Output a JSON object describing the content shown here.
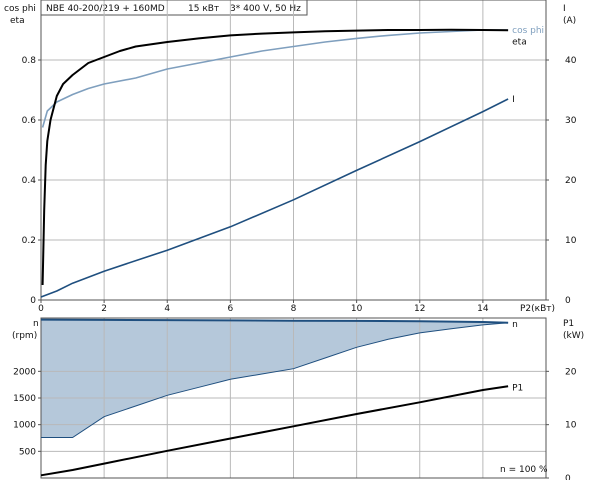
{
  "header": {
    "title": "NBE 40-200/219 + 160MD",
    "power": "15 кВт",
    "supply": "3* 400 V, 50 Hz"
  },
  "colors": {
    "eta": "#000000",
    "cos_phi": "#7f9fbe",
    "current": "#1f4f7f",
    "speed_line": "#1f4f7f",
    "speed_fill": "#b5c8da",
    "power_input": "#000000",
    "grid": "#b9b9b9"
  },
  "footer": {
    "speed_percent": "n  = 100 %"
  },
  "chart_data": [
    {
      "type": "line",
      "panel": "top",
      "left_axis": {
        "label_lines": [
          "cos phi",
          "eta"
        ],
        "ylim": [
          0,
          1
        ],
        "ticks": [
          "0",
          "0.2",
          "0.4",
          "0.6",
          "0.8"
        ]
      },
      "right_axis": {
        "label_lines": [
          "I",
          "(A)"
        ],
        "ylim": [
          0,
          50
        ],
        "ticks": [
          "0",
          "10",
          "20",
          "30",
          "40"
        ]
      },
      "x_axis": {
        "label": "P2(кВт)",
        "xlim": [
          0,
          16
        ],
        "ticks": [
          "0",
          "2",
          "4",
          "6",
          "8",
          "10",
          "12",
          "14"
        ]
      },
      "grid": true,
      "series": [
        {
          "name": "eta",
          "axis": "left",
          "color_key": "eta",
          "points": [
            [
              0.05,
              0.05
            ],
            [
              0.1,
              0.3
            ],
            [
              0.15,
              0.45
            ],
            [
              0.2,
              0.53
            ],
            [
              0.3,
              0.6
            ],
            [
              0.5,
              0.68
            ],
            [
              0.7,
              0.72
            ],
            [
              1,
              0.75
            ],
            [
              1.5,
              0.79
            ],
            [
              2,
              0.81
            ],
            [
              2.5,
              0.83
            ],
            [
              3,
              0.845
            ],
            [
              4,
              0.86
            ],
            [
              5,
              0.872
            ],
            [
              6,
              0.882
            ],
            [
              7,
              0.888
            ],
            [
              8,
              0.892
            ],
            [
              9,
              0.896
            ],
            [
              10,
              0.898
            ],
            [
              11,
              0.9
            ],
            [
              12,
              0.9
            ],
            [
              13,
              0.901
            ],
            [
              14,
              0.9
            ],
            [
              14.8,
              0.899
            ]
          ]
        },
        {
          "name": "cos phi",
          "axis": "left",
          "color_key": "cos_phi",
          "points": [
            [
              0.05,
              0.575
            ],
            [
              0.2,
              0.63
            ],
            [
              0.5,
              0.66
            ],
            [
              1,
              0.685
            ],
            [
              1.5,
              0.705
            ],
            [
              2,
              0.72
            ],
            [
              3,
              0.74
            ],
            [
              4,
              0.77
            ],
            [
              5,
              0.79
            ],
            [
              6,
              0.81
            ],
            [
              7,
              0.83
            ],
            [
              8,
              0.845
            ],
            [
              9,
              0.86
            ],
            [
              10,
              0.872
            ],
            [
              11,
              0.882
            ],
            [
              12,
              0.89
            ],
            [
              13,
              0.895
            ],
            [
              14,
              0.9
            ],
            [
              14.8,
              0.9
            ]
          ]
        },
        {
          "name": "I",
          "axis": "right",
          "color_key": "current",
          "points": [
            [
              0,
              0.5
            ],
            [
              0.5,
              1.5
            ],
            [
              1,
              2.8
            ],
            [
              2,
              4.8
            ],
            [
              4,
              8.3
            ],
            [
              6,
              12.2
            ],
            [
              8,
              16.7
            ],
            [
              10,
              21.6
            ],
            [
              12,
              26.4
            ],
            [
              14,
              31.4
            ],
            [
              14.8,
              33.5
            ]
          ]
        }
      ]
    },
    {
      "type": "area",
      "panel": "bottom",
      "left_axis": {
        "label_lines": [
          "n",
          "(rpm)"
        ],
        "ylim": [
          0,
          3000
        ],
        "ticks": [
          "500",
          "1000",
          "1500",
          "2000"
        ]
      },
      "right_axis": {
        "label_lines": [
          "P1",
          "(kW)"
        ],
        "ylim": [
          0,
          30
        ],
        "ticks": [
          "0",
          "10",
          "20"
        ]
      },
      "x_axis": {
        "xlim": [
          0,
          16
        ]
      },
      "grid": true,
      "series": [
        {
          "name": "n",
          "axis": "left",
          "color_key": "speed_line",
          "points": [
            [
              0,
              2970
            ],
            [
              2,
              2965
            ],
            [
              4,
              2960
            ],
            [
              6,
              2955
            ],
            [
              8,
              2950
            ],
            [
              10,
              2945
            ],
            [
              12,
              2940
            ],
            [
              14,
              2925
            ],
            [
              14.8,
              2910
            ]
          ]
        },
        {
          "name": "speed range lower bound",
          "axis": "left",
          "color_key": "speed_fill",
          "points": [
            [
              0,
              760
            ],
            [
              1,
              760
            ],
            [
              2,
              1150
            ],
            [
              3,
              1350
            ],
            [
              4,
              1550
            ],
            [
              5,
              1700
            ],
            [
              6,
              1850
            ],
            [
              7,
              1950
            ],
            [
              8,
              2050
            ],
            [
              9,
              2250
            ],
            [
              10,
              2450
            ],
            [
              11,
              2600
            ],
            [
              12,
              2720
            ],
            [
              13,
              2800
            ],
            [
              14,
              2870
            ],
            [
              14.8,
              2910
            ]
          ]
        },
        {
          "name": "P1",
          "axis": "right",
          "color_key": "power_input",
          "points": [
            [
              0,
              0.5
            ],
            [
              1,
              1.5
            ],
            [
              2,
              2.7
            ],
            [
              4,
              5.1
            ],
            [
              6,
              7.4
            ],
            [
              8,
              9.7
            ],
            [
              10,
              12.0
            ],
            [
              12,
              14.2
            ],
            [
              14,
              16.5
            ],
            [
              14.8,
              17.2
            ]
          ]
        }
      ],
      "end_labels": [
        "n",
        "P1"
      ]
    }
  ]
}
